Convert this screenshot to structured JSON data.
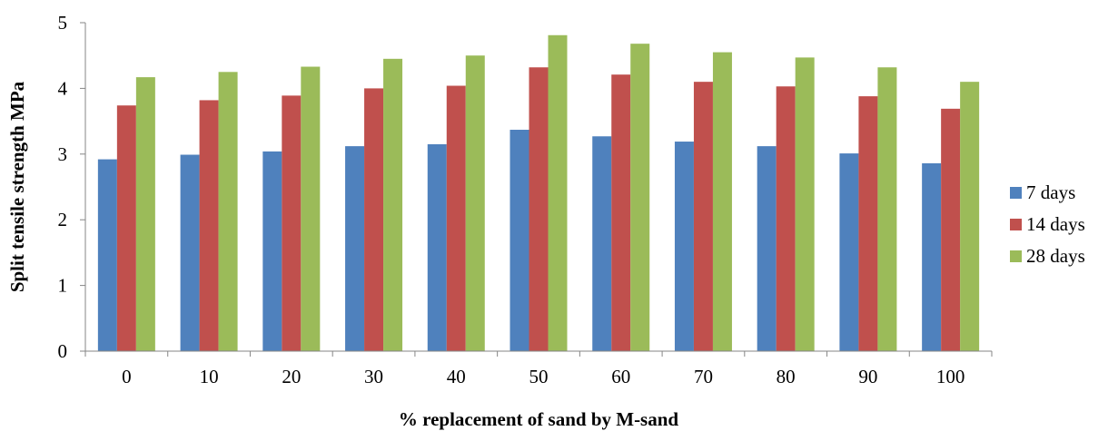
{
  "chart_data": {
    "type": "bar",
    "title": "",
    "xlabel": "% replacement of sand by M-sand",
    "ylabel": "Split tensile strength MPa",
    "categories": [
      "0",
      "10",
      "20",
      "30",
      "40",
      "50",
      "60",
      "70",
      "80",
      "90",
      "100"
    ],
    "ylim": [
      0,
      5
    ],
    "yticks": [
      "0",
      "1",
      "2",
      "3",
      "4",
      "5"
    ],
    "grid": false,
    "legend_position": "right",
    "series": [
      {
        "name": "7 days",
        "color": "#4F81BD",
        "values": [
          2.92,
          2.99,
          3.04,
          3.12,
          3.15,
          3.37,
          3.27,
          3.19,
          3.12,
          3.01,
          2.86
        ]
      },
      {
        "name": "14 days",
        "color": "#C0504D",
        "values": [
          3.74,
          3.82,
          3.89,
          4.0,
          4.04,
          4.32,
          4.21,
          4.1,
          4.03,
          3.88,
          3.69
        ]
      },
      {
        "name": "28 days",
        "color": "#9BBB59",
        "values": [
          4.17,
          4.25,
          4.33,
          4.45,
          4.5,
          4.81,
          4.68,
          4.55,
          4.47,
          4.32,
          4.1
        ]
      }
    ]
  }
}
